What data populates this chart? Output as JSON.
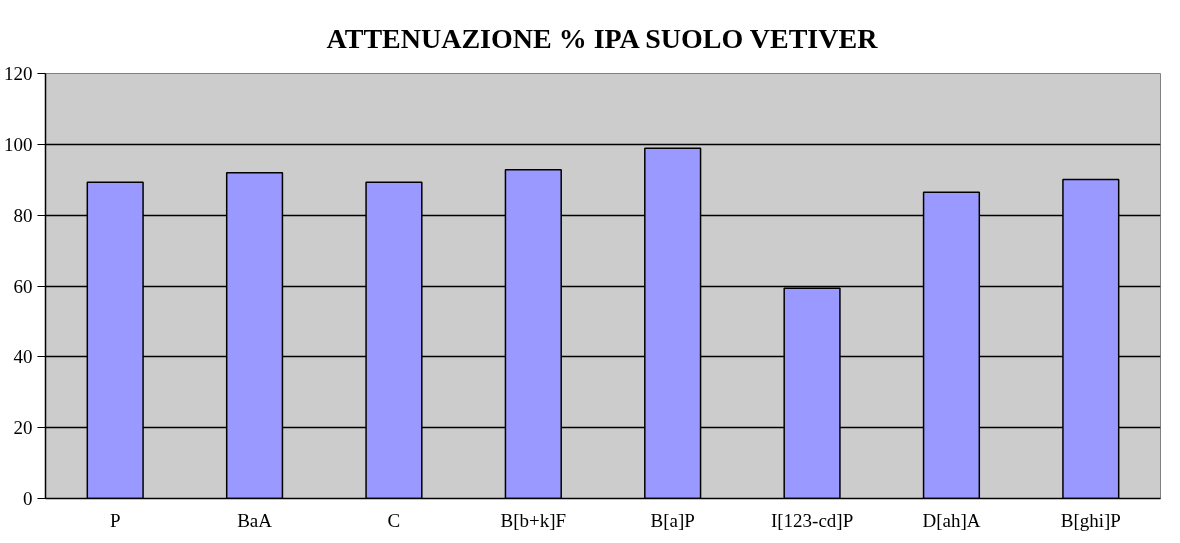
{
  "chart_data": {
    "type": "bar",
    "title": "ATTENUAZIONE % IPA SUOLO VETIVER",
    "categories": [
      "P",
      "BaA",
      "C",
      "B[b+k]F",
      "B[a]P",
      "I[123-cd]P",
      "D[ah]A",
      "B[ghi]P"
    ],
    "values": [
      89.3,
      92.0,
      89.3,
      92.8,
      98.9,
      59.4,
      86.5,
      90.1
    ],
    "color": "#9999ff",
    "ylim": [
      0,
      120
    ],
    "yticks": [
      0,
      20,
      40,
      60,
      80,
      100,
      120
    ],
    "grid": "y"
  }
}
